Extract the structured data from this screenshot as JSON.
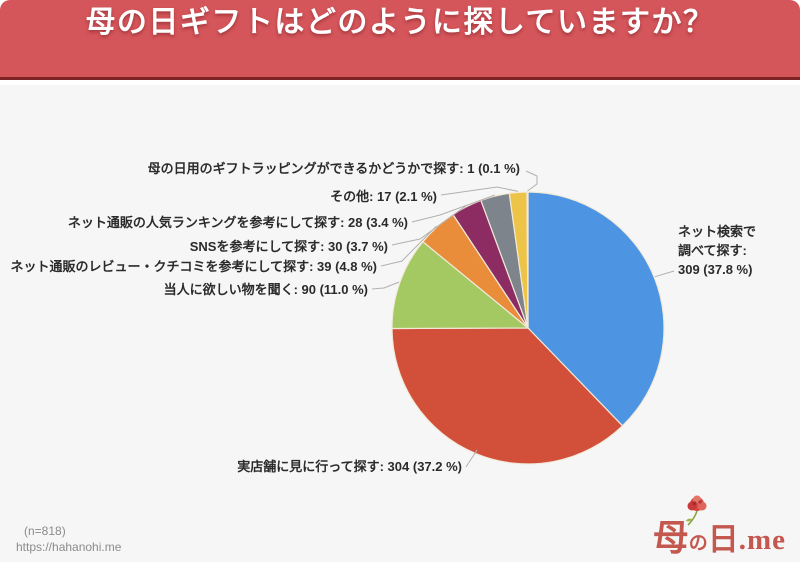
{
  "title": "母の日ギフトはどのように探していますか？",
  "colors": {
    "banner_bg": "#d4555a",
    "banner_border": "#7d2427",
    "content_bg": "#f6f6f7",
    "label_text": "#2b2b2b",
    "leader_line": "#b3b0ad",
    "slice_border": "#f1ead9",
    "footer_text": "#8b8b8b",
    "logo_red": "#c4574e"
  },
  "chart_data": {
    "type": "pie",
    "title": "母の日ギフトはどのように探していますか？",
    "total": 818,
    "start_angle": "12-o-clock",
    "direction": "clockwise",
    "value_format": "label: value (pct %)",
    "slices": [
      {
        "label": "ネット検索で調べて探す",
        "value": 309,
        "pct": "37.8",
        "color": "#4d94e3"
      },
      {
        "label": "実店舗に見に行って探す",
        "value": 304,
        "pct": "37.2",
        "color": "#d2503a"
      },
      {
        "label": "当人に欲しい物を聞く",
        "value": 90,
        "pct": "11.0",
        "color": "#a4c963"
      },
      {
        "label": "ネット通販のレビュー・クチコミを参考にして探す",
        "value": 39,
        "pct": "4.8",
        "color": "#e98d3b"
      },
      {
        "label": "SNSを参考にして探す",
        "value": 30,
        "pct": "3.7",
        "color": "#8c2c63"
      },
      {
        "label": "ネット通販の人気ランキングを参考にして探す",
        "value": 28,
        "pct": "3.4",
        "color": "#7e848c"
      },
      {
        "label": "その他",
        "value": 17,
        "pct": "2.1",
        "color": "#eec448"
      },
      {
        "label": "母の日用のギフトラッピングができるかどうかで探す",
        "value": 1,
        "pct": "0.1",
        "color": "#cfd4dc"
      }
    ]
  },
  "footer": {
    "sample": "(n=818)",
    "url": "https://hahanohi.me"
  },
  "logo": {
    "mo": "母",
    "no": "の",
    "hi": "日",
    "me": ".me"
  }
}
